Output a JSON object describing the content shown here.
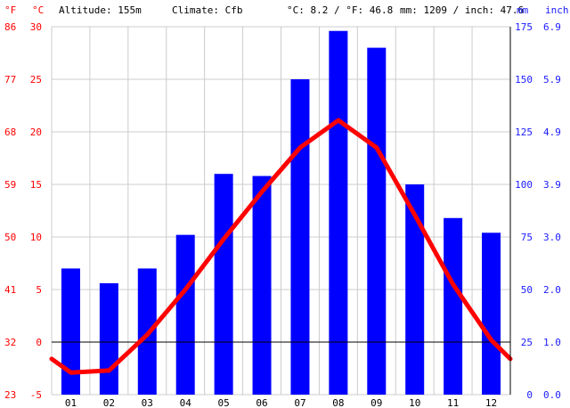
{
  "header": {
    "unit_f": "°F",
    "unit_c": "°C",
    "altitude": "Altitude: 155m",
    "climate": "Climate: Cfb",
    "temp_summary": "°C: 8.2 / °F: 46.8",
    "precip_summary": "mm: 1209 / inch: 47.6",
    "unit_mm": "mm",
    "unit_inch": "inch"
  },
  "colors": {
    "bars": "#0000ff",
    "line": "#ff0000",
    "grid": "#cccccc",
    "temp_axis_text": "#ff0000",
    "precip_axis_text": "#1a1aff"
  },
  "chart_data": {
    "type": "bar",
    "categories": [
      "01",
      "02",
      "03",
      "04",
      "05",
      "06",
      "07",
      "08",
      "09",
      "10",
      "11",
      "12"
    ],
    "series": [
      {
        "type": "bar",
        "axis": "right",
        "values": [
          60,
          53,
          60,
          76,
          105,
          104,
          150,
          173,
          165,
          100,
          84,
          77
        ]
      },
      {
        "type": "line",
        "axis": "left",
        "values": [
          -2.9,
          -2.7,
          0.7,
          5.0,
          9.8,
          14.3,
          18.5,
          21.1,
          18.5,
          12.1,
          5.5,
          0.2
        ],
        "start_value": -1.6,
        "end_value": -1.6
      }
    ],
    "temp_axis": {
      "ylim": [
        -5,
        30
      ],
      "ticks_c": [
        "30",
        "25",
        "20",
        "15",
        "10",
        "5",
        "0",
        "-5"
      ],
      "ticks_f": [
        "86",
        "77",
        "68",
        "59",
        "50",
        "41",
        "32",
        "23"
      ]
    },
    "precip_axis": {
      "ylim": [
        0,
        175
      ],
      "ticks_mm": [
        "175",
        "150",
        "125",
        "100",
        "75",
        "50",
        "25",
        "0"
      ],
      "ticks_inch": [
        "6.9",
        "5.9",
        "4.9",
        "3.9",
        "3.0",
        "2.0",
        "1.0",
        "0.0"
      ]
    },
    "grid": true
  }
}
